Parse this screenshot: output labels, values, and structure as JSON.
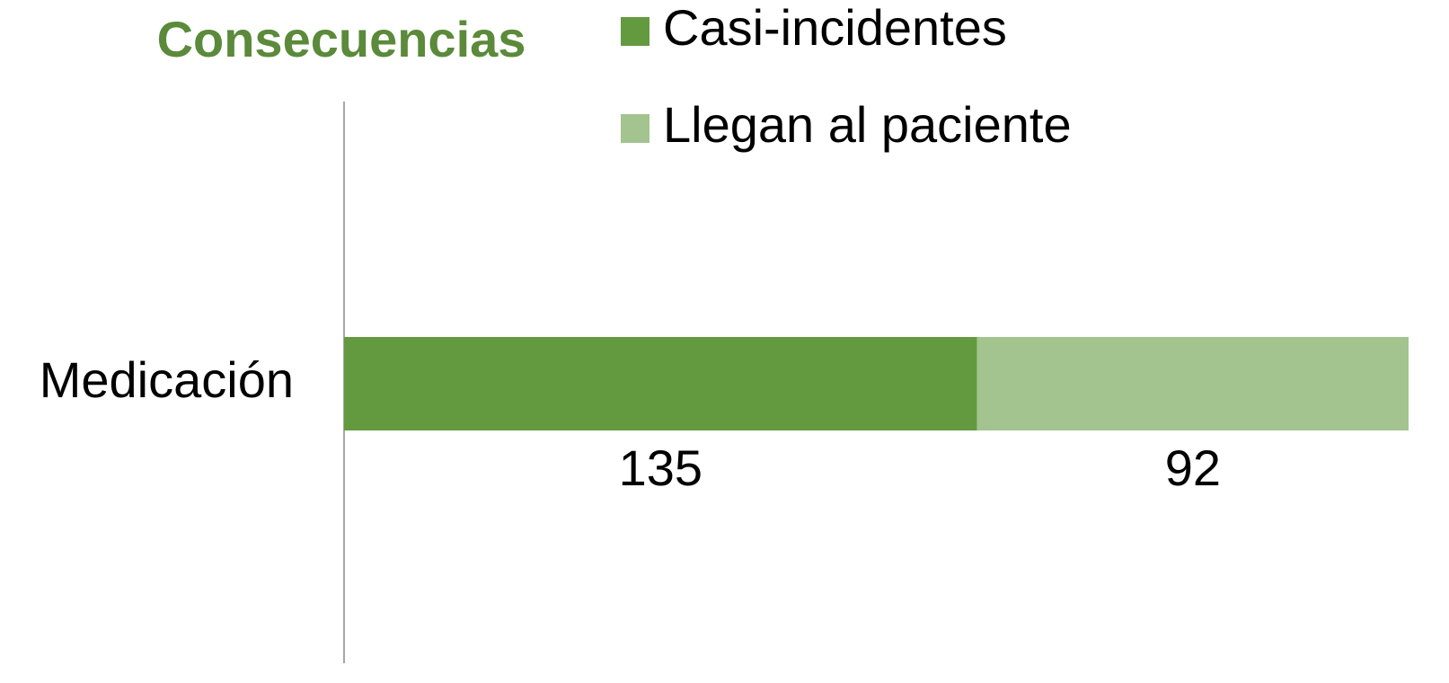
{
  "chart_data": {
    "type": "stacked_bar_horizontal",
    "title": "Consecuencias",
    "categories": [
      "Medicación"
    ],
    "series": [
      {
        "name": "Casi-incidentes",
        "color": "#639a3f",
        "values": [
          135
        ]
      },
      {
        "name": "Llegan al paciente",
        "color": "#a3c48f",
        "values": [
          92
        ]
      }
    ]
  }
}
